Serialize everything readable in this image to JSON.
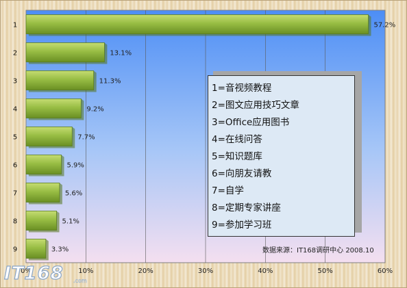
{
  "chart_data": {
    "type": "bar",
    "orientation": "horizontal",
    "categories": [
      "1",
      "2",
      "3",
      "4",
      "5",
      "6",
      "7",
      "8",
      "9"
    ],
    "values": [
      57.2,
      13.1,
      11.3,
      9.2,
      7.7,
      5.9,
      5.6,
      5.1,
      3.3
    ],
    "value_labels": [
      "57.2%",
      "13.1%",
      "11.3%",
      "9.2%",
      "7.7%",
      "5.9%",
      "5.6%",
      "5.1%",
      "3.3%"
    ],
    "xlim": [
      0,
      60
    ],
    "x_ticks": [
      "0%",
      "10%",
      "20%",
      "30%",
      "40%",
      "50%",
      "60%"
    ],
    "grid": "vertical",
    "bar_color": "#8fb33a",
    "plot_background": [
      "#4d8ef5",
      "#f4dff0"
    ],
    "legend": [
      "1=音视频教程",
      "2=图文应用技巧文章",
      "3=Office应用图书",
      "4=在线问答",
      "5=知识题库",
      "6=向朋友请教",
      "7=自学",
      "8=定期专家讲座",
      "9=参加学习班"
    ],
    "legend_placement": "right",
    "source": "数据来源：IT168调研中心 2008.10"
  },
  "watermark": "IT168.com"
}
